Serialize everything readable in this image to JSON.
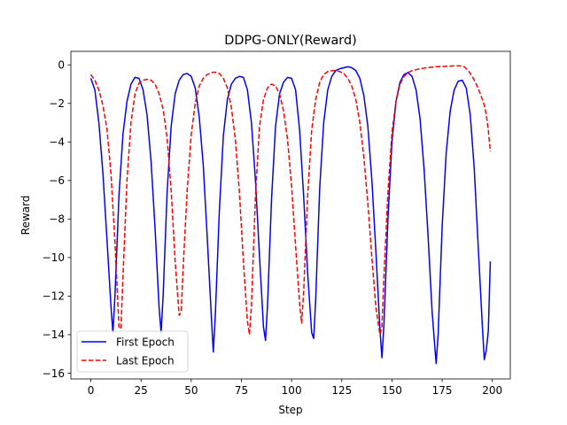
{
  "chart_data": {
    "type": "line",
    "title": "DDPG-ONLY(Reward)",
    "xlabel": "Step",
    "ylabel": "Reward",
    "xlim": [
      -9.95,
      208.95
    ],
    "ylim": [
      -16.3,
      0.7
    ],
    "xticks": [
      0,
      25,
      50,
      75,
      100,
      125,
      150,
      175,
      200
    ],
    "yticks": [
      0,
      -2,
      -4,
      -6,
      -8,
      -10,
      -12,
      -14,
      -16
    ],
    "grid": false,
    "legend_position": "lower left",
    "series": [
      {
        "name": "First Epoch",
        "color": "#0000ff",
        "dash": "solid",
        "points": [
          [
            0,
            -0.7
          ],
          [
            2,
            -1.3
          ],
          [
            4,
            -3.0
          ],
          [
            6,
            -5.6
          ],
          [
            8,
            -9.0
          ],
          [
            10,
            -12.5
          ],
          [
            11,
            -13.9
          ],
          [
            12,
            -12.0
          ],
          [
            14,
            -6.8
          ],
          [
            16,
            -3.6
          ],
          [
            18,
            -1.9
          ],
          [
            20,
            -1.0
          ],
          [
            22,
            -0.65
          ],
          [
            24,
            -0.7
          ],
          [
            26,
            -1.3
          ],
          [
            28,
            -2.6
          ],
          [
            30,
            -5.0
          ],
          [
            32,
            -8.5
          ],
          [
            34,
            -12.6
          ],
          [
            35,
            -13.9
          ],
          [
            36,
            -12.0
          ],
          [
            38,
            -6.6
          ],
          [
            40,
            -3.2
          ],
          [
            42,
            -1.5
          ],
          [
            44,
            -0.8
          ],
          [
            46,
            -0.5
          ],
          [
            48,
            -0.45
          ],
          [
            50,
            -0.6
          ],
          [
            52,
            -1.2
          ],
          [
            54,
            -2.7
          ],
          [
            56,
            -5.2
          ],
          [
            58,
            -9.0
          ],
          [
            60,
            -13.0
          ],
          [
            61,
            -14.9
          ],
          [
            62,
            -13.0
          ],
          [
            64,
            -7.6
          ],
          [
            66,
            -3.7
          ],
          [
            68,
            -1.8
          ],
          [
            70,
            -1.0
          ],
          [
            72,
            -0.7
          ],
          [
            74,
            -0.6
          ],
          [
            76,
            -0.65
          ],
          [
            78,
            -1.3
          ],
          [
            80,
            -3.0
          ],
          [
            82,
            -6.0
          ],
          [
            84,
            -9.9
          ],
          [
            86,
            -13.6
          ],
          [
            87,
            -14.3
          ],
          [
            88,
            -12.5
          ],
          [
            90,
            -7.0
          ],
          [
            92,
            -3.2
          ],
          [
            94,
            -1.5
          ],
          [
            96,
            -0.9
          ],
          [
            98,
            -0.65
          ],
          [
            100,
            -0.7
          ],
          [
            102,
            -1.3
          ],
          [
            104,
            -3.4
          ],
          [
            106,
            -6.8
          ],
          [
            108,
            -10.8
          ],
          [
            110,
            -13.9
          ],
          [
            111,
            -14.2
          ],
          [
            112,
            -12.2
          ],
          [
            114,
            -6.4
          ],
          [
            116,
            -3.0
          ],
          [
            118,
            -1.3
          ],
          [
            120,
            -0.6
          ],
          [
            122,
            -0.3
          ],
          [
            124,
            -0.2
          ],
          [
            126,
            -0.15
          ],
          [
            128,
            -0.1
          ],
          [
            130,
            -0.15
          ],
          [
            132,
            -0.3
          ],
          [
            134,
            -0.7
          ],
          [
            136,
            -1.6
          ],
          [
            138,
            -3.2
          ],
          [
            140,
            -6.0
          ],
          [
            142,
            -9.7
          ],
          [
            144,
            -13.7
          ],
          [
            145,
            -15.2
          ],
          [
            146,
            -13.5
          ],
          [
            148,
            -8.0
          ],
          [
            150,
            -4.0
          ],
          [
            152,
            -1.9
          ],
          [
            154,
            -0.9
          ],
          [
            156,
            -0.5
          ],
          [
            158,
            -0.4
          ],
          [
            160,
            -0.6
          ],
          [
            162,
            -1.3
          ],
          [
            164,
            -2.8
          ],
          [
            166,
            -5.4
          ],
          [
            168,
            -8.9
          ],
          [
            170,
            -12.8
          ],
          [
            172,
            -15.5
          ],
          [
            173,
            -14.0
          ],
          [
            175,
            -8.4
          ],
          [
            177,
            -4.6
          ],
          [
            179,
            -2.4
          ],
          [
            181,
            -1.3
          ],
          [
            183,
            -0.85
          ],
          [
            185,
            -0.8
          ],
          [
            187,
            -1.2
          ],
          [
            189,
            -2.6
          ],
          [
            191,
            -5.4
          ],
          [
            193,
            -9.5
          ],
          [
            195,
            -13.5
          ],
          [
            196,
            -15.3
          ],
          [
            197,
            -14.8
          ],
          [
            198,
            -13.8
          ],
          [
            199,
            -10.2
          ]
        ]
      },
      {
        "name": "Last Epoch",
        "color": "#ff0000",
        "dash": "dashed",
        "points": [
          [
            0,
            -0.5
          ],
          [
            2,
            -0.8
          ],
          [
            4,
            -1.3
          ],
          [
            6,
            -2.1
          ],
          [
            8,
            -3.3
          ],
          [
            10,
            -5.6
          ],
          [
            12,
            -9.2
          ],
          [
            14,
            -13.6
          ],
          [
            15,
            -13.7
          ],
          [
            16,
            -11.0
          ],
          [
            18,
            -6.0
          ],
          [
            20,
            -3.0
          ],
          [
            22,
            -1.5
          ],
          [
            24,
            -0.95
          ],
          [
            26,
            -0.8
          ],
          [
            28,
            -0.75
          ],
          [
            30,
            -0.8
          ],
          [
            32,
            -1.0
          ],
          [
            34,
            -1.5
          ],
          [
            36,
            -2.3
          ],
          [
            38,
            -3.8
          ],
          [
            40,
            -6.5
          ],
          [
            42,
            -10.2
          ],
          [
            44,
            -13.0
          ],
          [
            45,
            -12.8
          ],
          [
            46,
            -10.5
          ],
          [
            48,
            -6.5
          ],
          [
            50,
            -3.6
          ],
          [
            52,
            -2.0
          ],
          [
            54,
            -1.1
          ],
          [
            56,
            -0.7
          ],
          [
            58,
            -0.5
          ],
          [
            60,
            -0.4
          ],
          [
            62,
            -0.38
          ],
          [
            64,
            -0.45
          ],
          [
            66,
            -0.7
          ],
          [
            68,
            -1.2
          ],
          [
            70,
            -2.2
          ],
          [
            72,
            -3.9
          ],
          [
            74,
            -6.6
          ],
          [
            76,
            -10.2
          ],
          [
            78,
            -13.3
          ],
          [
            79,
            -14.0
          ],
          [
            80,
            -12.5
          ],
          [
            82,
            -6.8
          ],
          [
            84,
            -3.2
          ],
          [
            86,
            -1.8
          ],
          [
            88,
            -1.2
          ],
          [
            90,
            -1.0
          ],
          [
            92,
            -1.1
          ],
          [
            94,
            -1.5
          ],
          [
            96,
            -2.4
          ],
          [
            98,
            -3.9
          ],
          [
            100,
            -6.3
          ],
          [
            102,
            -9.4
          ],
          [
            104,
            -12.4
          ],
          [
            105,
            -13.4
          ],
          [
            106,
            -11.8
          ],
          [
            108,
            -6.8
          ],
          [
            110,
            -3.4
          ],
          [
            112,
            -1.8
          ],
          [
            114,
            -0.9
          ],
          [
            116,
            -0.5
          ],
          [
            118,
            -0.35
          ],
          [
            120,
            -0.3
          ],
          [
            122,
            -0.3
          ],
          [
            124,
            -0.35
          ],
          [
            126,
            -0.45
          ],
          [
            128,
            -0.7
          ],
          [
            130,
            -1.1
          ],
          [
            132,
            -1.8
          ],
          [
            134,
            -3.0
          ],
          [
            136,
            -4.8
          ],
          [
            138,
            -7.2
          ],
          [
            140,
            -10.0
          ],
          [
            142,
            -12.6
          ],
          [
            144,
            -14.0
          ],
          [
            145,
            -13.6
          ],
          [
            146,
            -11.0
          ],
          [
            148,
            -6.6
          ],
          [
            150,
            -3.5
          ],
          [
            152,
            -1.9
          ],
          [
            154,
            -1.0
          ],
          [
            156,
            -0.6
          ],
          [
            158,
            -0.4
          ],
          [
            160,
            -0.3
          ],
          [
            162,
            -0.25
          ],
          [
            164,
            -0.2
          ],
          [
            166,
            -0.17
          ],
          [
            168,
            -0.14
          ],
          [
            170,
            -0.12
          ],
          [
            172,
            -0.1
          ],
          [
            174,
            -0.09
          ],
          [
            176,
            -0.08
          ],
          [
            178,
            -0.07
          ],
          [
            180,
            -0.06
          ],
          [
            182,
            -0.05
          ],
          [
            184,
            -0.05
          ],
          [
            186,
            -0.1
          ],
          [
            188,
            -0.3
          ],
          [
            190,
            -0.6
          ],
          [
            192,
            -1.0
          ],
          [
            194,
            -1.5
          ],
          [
            196,
            -2.1
          ],
          [
            197,
            -2.6
          ],
          [
            198,
            -3.4
          ],
          [
            199,
            -4.5
          ]
        ]
      }
    ]
  }
}
